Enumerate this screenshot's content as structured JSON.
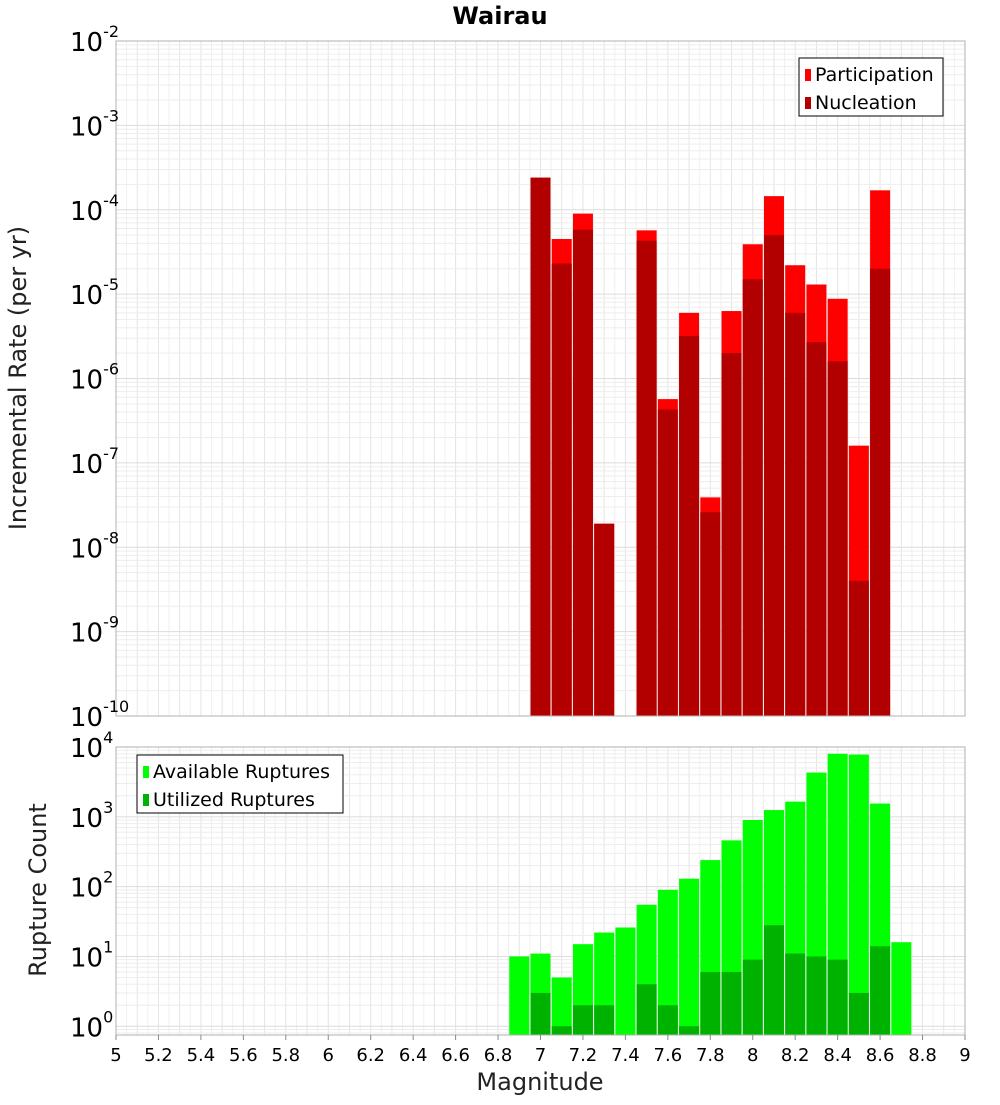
{
  "chart_data": [
    {
      "type": "bar",
      "title": "Wairau",
      "ylabel": "Incremental Rate (per yr)",
      "xlabel": "",
      "yscale": "log",
      "xlim": [
        5,
        9
      ],
      "ylim": [
        1e-10,
        0.01
      ],
      "y_ticks": [
        {
          "base": "10",
          "exp": "-10"
        },
        {
          "base": "10",
          "exp": "-9"
        },
        {
          "base": "10",
          "exp": "-8"
        },
        {
          "base": "10",
          "exp": "-7"
        },
        {
          "base": "10",
          "exp": "-6"
        },
        {
          "base": "10",
          "exp": "-5"
        },
        {
          "base": "10",
          "exp": "-4"
        },
        {
          "base": "10",
          "exp": "-3"
        },
        {
          "base": "10",
          "exp": "-2"
        }
      ],
      "legend": {
        "position": "top-right",
        "entries": [
          "Participation",
          "Nucleation"
        ]
      },
      "colors": {
        "Participation": "#ff0000",
        "Nucleation": "#b20000"
      },
      "x": [
        7.0,
        7.1,
        7.2,
        7.3,
        7.5,
        7.6,
        7.7,
        7.8,
        7.9,
        8.0,
        8.1,
        8.2,
        8.3,
        8.4,
        8.5,
        8.6
      ],
      "series": [
        {
          "name": "Participation",
          "values": [
            0.00024,
            4.5e-05,
            9e-05,
            1.9e-08,
            5.7e-05,
            5.7e-07,
            6e-06,
            3.9e-08,
            6.3e-06,
            3.9e-05,
            0.000145,
            2.2e-05,
            1.3e-05,
            8.8e-06,
            1.6e-07,
            0.00017
          ]
        },
        {
          "name": "Nucleation",
          "values": [
            0.00024,
            2.3e-05,
            5.8e-05,
            1.9e-08,
            4.3e-05,
            4.3e-07,
            3.2e-06,
            2.6e-08,
            2e-06,
            1.5e-05,
            5e-05,
            6e-06,
            2.7e-06,
            1.6e-06,
            4e-09,
            2e-05
          ]
        }
      ]
    },
    {
      "type": "bar",
      "title": "",
      "ylabel": "Rupture Count",
      "xlabel": "Magnitude",
      "yscale": "log",
      "xlim": [
        5,
        9
      ],
      "ylim": [
        0.75,
        10000
      ],
      "x_ticks": [
        "5",
        "5.2",
        "5.4",
        "5.6",
        "5.8",
        "6",
        "6.2",
        "6.4",
        "6.6",
        "6.8",
        "7",
        "7.2",
        "7.4",
        "7.6",
        "7.8",
        "8",
        "8.2",
        "8.4",
        "8.6",
        "8.8",
        "9"
      ],
      "y_ticks": [
        {
          "base": "10",
          "exp": "0"
        },
        {
          "base": "10",
          "exp": "1"
        },
        {
          "base": "10",
          "exp": "2"
        },
        {
          "base": "10",
          "exp": "3"
        },
        {
          "base": "10",
          "exp": "4"
        }
      ],
      "legend": {
        "position": "top-left",
        "entries": [
          "Available Ruptures",
          "Utilized Ruptures"
        ]
      },
      "colors": {
        "Available Ruptures": "#00ff00",
        "Utilized Ruptures": "#00b200"
      },
      "x": [
        6.9,
        7.0,
        7.1,
        7.2,
        7.3,
        7.4,
        7.5,
        7.6,
        7.7,
        7.8,
        7.9,
        8.0,
        8.1,
        8.2,
        8.3,
        8.4,
        8.5,
        8.6,
        8.7
      ],
      "series": [
        {
          "name": "Available Ruptures",
          "values": [
            10,
            11,
            5,
            15,
            22,
            26,
            55,
            90,
            130,
            240,
            460,
            900,
            1250,
            1650,
            4300,
            8000,
            7800,
            1550,
            16
          ]
        },
        {
          "name": "Utilized Ruptures",
          "values": [
            0,
            3,
            1,
            2,
            2,
            0,
            4,
            2,
            1,
            6,
            6,
            9,
            28,
            11,
            10,
            9,
            3,
            14,
            0
          ]
        }
      ]
    }
  ]
}
